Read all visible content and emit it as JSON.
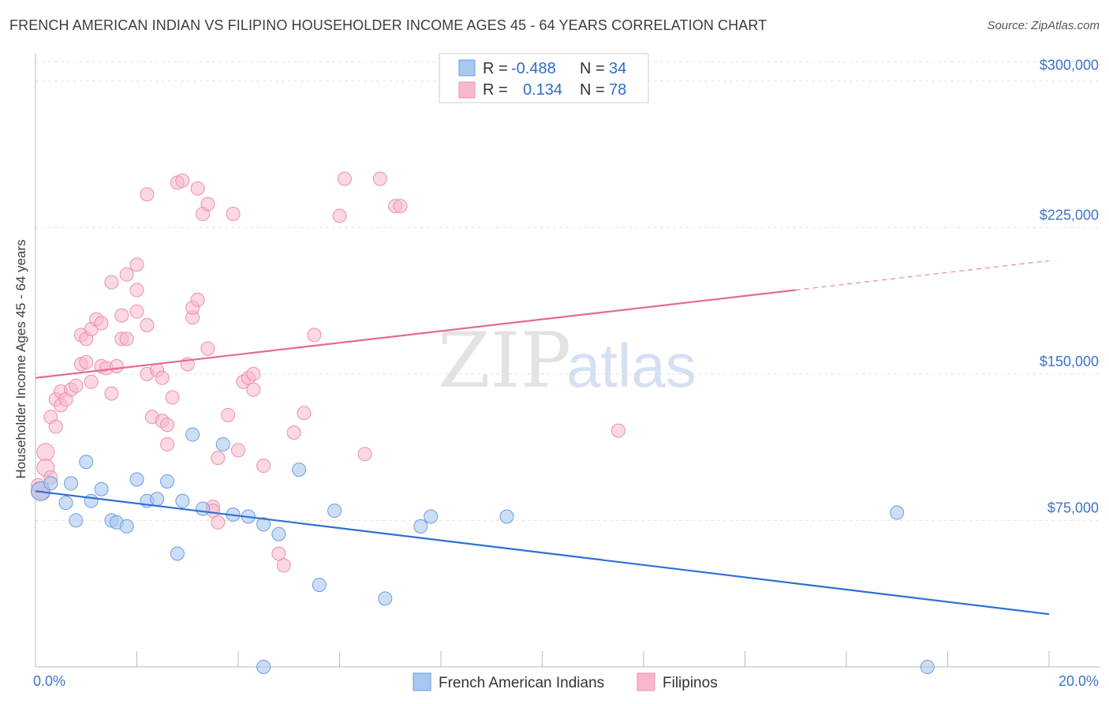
{
  "title": "FRENCH AMERICAN INDIAN VS FILIPINO HOUSEHOLDER INCOME AGES 45 - 64 YEARS CORRELATION CHART",
  "source": "Source: ZipAtlas.com",
  "watermark": {
    "zip": "ZIP",
    "atlas": "atlas"
  },
  "legend_box": {
    "rows": [
      {
        "r_label": "R = ",
        "r_value": "-0.488",
        "n_label": "N = ",
        "n_value": "34",
        "color": "#a9c8f0"
      },
      {
        "r_label": "R = ",
        "r_value": "0.134",
        "n_label": "N = ",
        "n_value": "78",
        "color": "#f7b8cb"
      }
    ]
  },
  "bottom_legend": [
    {
      "label": "French American Indians",
      "color": "#a9c8f0"
    },
    {
      "label": "Filipinos",
      "color": "#f7b8cb"
    }
  ],
  "chart_data": {
    "type": "scatter",
    "title": "FRENCH AMERICAN INDIAN VS FILIPINO HOUSEHOLDER INCOME AGES 45 - 64 YEARS CORRELATION CHART",
    "xlabel": "",
    "ylabel": "Householder Income Ages 45 - 64 years",
    "x_tick_labels": [
      "0.0%",
      "20.0%"
    ],
    "y_tick_labels": [
      "$75,000",
      "$150,000",
      "$225,000",
      "$300,000"
    ],
    "y_ticks": [
      75000,
      150000,
      225000,
      300000
    ],
    "xlim": [
      0,
      20
    ],
    "ylim": [
      0,
      310000
    ],
    "grid": true,
    "legend_position": "top-center",
    "series": [
      {
        "name": "French American Indians",
        "color": "#a9c8f0",
        "stroke": "#6a9ee0",
        "trend": {
          "x0": 0,
          "y0": 90000,
          "x1": 20,
          "y1": 27000,
          "color": "#2f6fd6"
        },
        "points": [
          [
            0.1,
            90000
          ],
          [
            0.3,
            94000
          ],
          [
            0.6,
            84000
          ],
          [
            0.7,
            94000
          ],
          [
            0.8,
            75000
          ],
          [
            1.0,
            105000
          ],
          [
            1.1,
            85000
          ],
          [
            1.3,
            91000
          ],
          [
            1.5,
            75000
          ],
          [
            1.6,
            74000
          ],
          [
            1.8,
            72000
          ],
          [
            2.0,
            96000
          ],
          [
            2.2,
            85000
          ],
          [
            2.4,
            86000
          ],
          [
            2.6,
            95000
          ],
          [
            2.8,
            58000
          ],
          [
            2.9,
            85000
          ],
          [
            3.1,
            119000
          ],
          [
            3.3,
            81000
          ],
          [
            3.7,
            114000
          ],
          [
            3.9,
            78000
          ],
          [
            4.2,
            77000
          ],
          [
            4.5,
            0
          ],
          [
            4.5,
            73000
          ],
          [
            4.8,
            68000
          ],
          [
            5.2,
            101000
          ],
          [
            5.6,
            42000
          ],
          [
            5.9,
            80000
          ],
          [
            6.9,
            35000
          ],
          [
            7.6,
            72000
          ],
          [
            7.8,
            77000
          ],
          [
            9.3,
            77000
          ],
          [
            17.0,
            79000
          ],
          [
            17.6,
            0
          ]
        ]
      },
      {
        "name": "Filipinos",
        "color": "#f7b8cb",
        "stroke": "#ec8fae",
        "trend": {
          "x0": 0,
          "y0": 148000,
          "x1": 15,
          "y1": 193000,
          "x2": 20,
          "y2": 208000,
          "color": "#e46a94"
        },
        "points": [
          [
            0.1,
            90000
          ],
          [
            0.2,
            110000
          ],
          [
            0.2,
            102000
          ],
          [
            0.3,
            97000
          ],
          [
            0.3,
            128000
          ],
          [
            0.4,
            123000
          ],
          [
            0.4,
            137000
          ],
          [
            0.5,
            141000
          ],
          [
            0.5,
            134000
          ],
          [
            0.6,
            137000
          ],
          [
            0.7,
            142000
          ],
          [
            0.8,
            144000
          ],
          [
            0.9,
            155000
          ],
          [
            0.9,
            170000
          ],
          [
            1.0,
            168000
          ],
          [
            1.0,
            156000
          ],
          [
            1.1,
            146000
          ],
          [
            1.1,
            173000
          ],
          [
            1.2,
            178000
          ],
          [
            1.3,
            176000
          ],
          [
            1.3,
            154000
          ],
          [
            1.4,
            153000
          ],
          [
            1.5,
            140000
          ],
          [
            1.5,
            197000
          ],
          [
            1.6,
            154000
          ],
          [
            1.7,
            180000
          ],
          [
            1.7,
            168000
          ],
          [
            1.8,
            201000
          ],
          [
            1.8,
            168000
          ],
          [
            2.0,
            182000
          ],
          [
            2.0,
            193000
          ],
          [
            2.0,
            206000
          ],
          [
            2.2,
            175000
          ],
          [
            2.2,
            150000
          ],
          [
            2.2,
            242000
          ],
          [
            2.3,
            128000
          ],
          [
            2.4,
            152000
          ],
          [
            2.5,
            126000
          ],
          [
            2.5,
            148000
          ],
          [
            2.6,
            124000
          ],
          [
            2.6,
            114000
          ],
          [
            2.7,
            138000
          ],
          [
            2.8,
            248000
          ],
          [
            2.9,
            249000
          ],
          [
            3.0,
            155000
          ],
          [
            3.1,
            179000
          ],
          [
            3.1,
            184000
          ],
          [
            3.2,
            188000
          ],
          [
            3.2,
            245000
          ],
          [
            3.3,
            232000
          ],
          [
            3.4,
            237000
          ],
          [
            3.4,
            163000
          ],
          [
            3.5,
            82000
          ],
          [
            3.5,
            80000
          ],
          [
            3.6,
            107000
          ],
          [
            3.6,
            74000
          ],
          [
            3.8,
            129000
          ],
          [
            3.9,
            232000
          ],
          [
            4.0,
            111000
          ],
          [
            4.1,
            146000
          ],
          [
            4.2,
            148000
          ],
          [
            4.3,
            150000
          ],
          [
            4.3,
            142000
          ],
          [
            4.5,
            103000
          ],
          [
            4.8,
            58000
          ],
          [
            4.9,
            52000
          ],
          [
            5.1,
            120000
          ],
          [
            5.3,
            130000
          ],
          [
            5.5,
            170000
          ],
          [
            6.0,
            231000
          ],
          [
            6.1,
            250000
          ],
          [
            6.5,
            109000
          ],
          [
            6.8,
            250000
          ],
          [
            7.1,
            236000
          ],
          [
            7.2,
            236000
          ],
          [
            11.5,
            121000
          ],
          [
            0.15,
            89000
          ],
          [
            0.05,
            93000
          ]
        ]
      }
    ]
  }
}
